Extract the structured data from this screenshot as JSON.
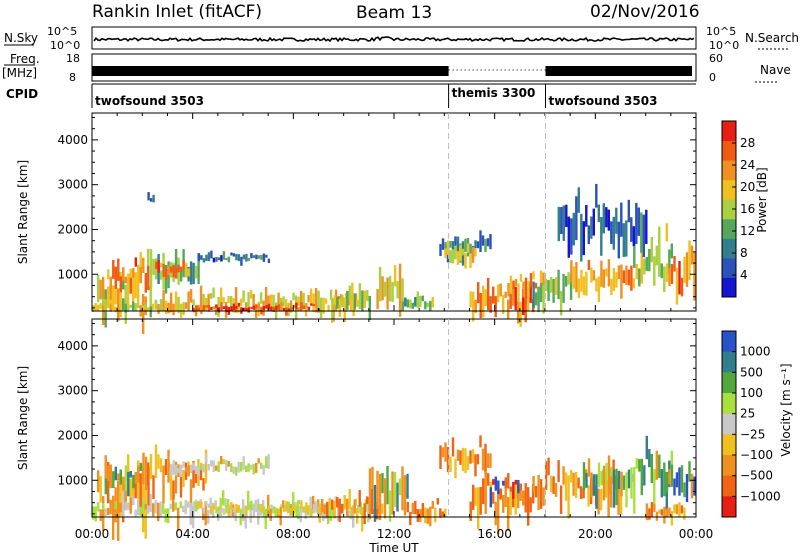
{
  "header": {
    "station": "Rankin Inlet (fitACF)",
    "beam": "Beam 13",
    "date": "02/Nov/2016"
  },
  "status_panel": {
    "nsky_label": "N.Sky",
    "nsky_ticks": [
      "10^5",
      "10^0"
    ],
    "nsearch_label": "N.Search",
    "nsearch_ticks": [
      "10^5",
      "10^0"
    ],
    "freq_label": "Freq.",
    "freq_unit": "[MHz]",
    "freq_ticks": [
      "18",
      "8"
    ],
    "nave_label": "Nave",
    "nave_ticks": [
      "60",
      "0"
    ],
    "cpid_label": "CPID",
    "cpid_segments": [
      {
        "name": "twofsound 3503",
        "start_hour": 0,
        "end_hour": 14.17
      },
      {
        "name": "themis 3300",
        "start_hour": 14.17,
        "end_hour": 18.02
      },
      {
        "name": "twofsound 3503",
        "start_hour": 18.02,
        "end_hour": 24
      }
    ]
  },
  "colors": {
    "power_scale": [
      "#1414d2",
      "#2a52b8",
      "#327e8c",
      "#55a85a",
      "#a8d040",
      "#f0c020",
      "#f09020",
      "#f05a14",
      "#e61e14"
    ],
    "velocity_scale": [
      "#2a52c8",
      "#327e8c",
      "#50a83c",
      "#a8e040",
      "#c8c8c8",
      "#f0c020",
      "#f09020",
      "#f06414",
      "#e61e14"
    ]
  },
  "chart_data": [
    {
      "type": "heatmap",
      "panel": "power",
      "xlabel": "",
      "ylabel": "Slant Range [km]",
      "x_ticks": [
        "00:00",
        "04:00",
        "08:00",
        "12:00",
        "16:00",
        "20:00",
        "00:00"
      ],
      "xlim_hours": [
        0,
        24
      ],
      "y_ticks": [
        1000,
        2000,
        3000,
        4000
      ],
      "ylim": [
        180,
        4600
      ],
      "colorbar_label": "Power [dB]",
      "colorbar_ticks": [
        4,
        8,
        12,
        16,
        20,
        24,
        28
      ],
      "colorbar_range": [
        0,
        32
      ],
      "regions": [
        {
          "t0": 0.2,
          "t1": 2.3,
          "r0": 200,
          "r1": 1700,
          "value": 18
        },
        {
          "t0": 0.6,
          "t1": 2.2,
          "r0": 800,
          "r1": 1500,
          "value": 24
        },
        {
          "t0": 2.3,
          "t1": 4.2,
          "r0": 800,
          "r1": 1800,
          "value": 14
        },
        {
          "t0": 2.5,
          "t1": 3.8,
          "r0": 950,
          "r1": 1400,
          "value": 24
        },
        {
          "t0": 4.2,
          "t1": 7.0,
          "r0": 1300,
          "r1": 1550,
          "value": 8
        },
        {
          "t0": 0.0,
          "t1": 2.5,
          "r0": 200,
          "r1": 500,
          "value": 18
        },
        {
          "t0": 2.5,
          "t1": 10.5,
          "r0": 200,
          "r1": 800,
          "value": 20
        },
        {
          "t0": 4.0,
          "t1": 9.0,
          "r0": 200,
          "r1": 400,
          "value": 28
        },
        {
          "t0": 9.5,
          "t1": 11.0,
          "r0": 250,
          "r1": 900,
          "value": 16
        },
        {
          "t0": 11.3,
          "t1": 12.3,
          "r0": 400,
          "r1": 1800,
          "value": 20
        },
        {
          "t0": 12.3,
          "t1": 13.5,
          "r0": 250,
          "r1": 650,
          "value": 14
        },
        {
          "t0": 13.8,
          "t1": 15.8,
          "r0": 1500,
          "r1": 2100,
          "value": 8
        },
        {
          "t0": 14.0,
          "t1": 15.2,
          "r0": 1300,
          "r1": 1800,
          "value": 18
        },
        {
          "t0": 15.0,
          "t1": 17.5,
          "r0": 200,
          "r1": 1000,
          "value": 24
        },
        {
          "t0": 16.5,
          "t1": 18.0,
          "r0": 600,
          "r1": 1200,
          "value": 22
        },
        {
          "t0": 17.5,
          "t1": 19.0,
          "r0": 400,
          "r1": 1300,
          "value": 14
        },
        {
          "t0": 19.0,
          "t1": 21.5,
          "r0": 700,
          "r1": 1500,
          "value": 22
        },
        {
          "t0": 21.5,
          "t1": 23.0,
          "r0": 900,
          "r1": 2200,
          "value": 16
        },
        {
          "t0": 22.8,
          "t1": 23.9,
          "r0": 700,
          "r1": 1900,
          "value": 24
        },
        {
          "t0": 18.5,
          "t1": 22.0,
          "r0": 1800,
          "r1": 3200,
          "value": 6
        },
        {
          "t0": 2.2,
          "t1": 2.4,
          "r0": 2600,
          "r1": 2900,
          "value": 8
        }
      ]
    },
    {
      "type": "heatmap",
      "panel": "velocity",
      "xlabel": "Time UT",
      "ylabel": "Slant Range [km]",
      "x_ticks": [
        "00:00",
        "04:00",
        "08:00",
        "12:00",
        "16:00",
        "20:00",
        "00:00"
      ],
      "xlim_hours": [
        0,
        24
      ],
      "y_ticks": [
        1000,
        2000,
        3000,
        4000
      ],
      "ylim": [
        180,
        4600
      ],
      "colorbar_label": "Velocity [m s⁻¹]",
      "colorbar_ticks": [
        "1000",
        "500",
        "100",
        "25",
        "−25",
        "−100",
        "−500",
        "−1000"
      ],
      "regions": [
        {
          "t0": 0.2,
          "t1": 2.2,
          "r0": 300,
          "r1": 1800,
          "value": "orange"
        },
        {
          "t0": 0.5,
          "t1": 2.0,
          "r0": 900,
          "r1": 1500,
          "value": "green"
        },
        {
          "t0": 2.0,
          "t1": 4.5,
          "r0": 800,
          "r1": 1900,
          "value": "orange"
        },
        {
          "t0": 3.0,
          "t1": 7.0,
          "r0": 1200,
          "r1": 1600,
          "value": "grey"
        },
        {
          "t0": 0.0,
          "t1": 11.0,
          "r0": 200,
          "r1": 800,
          "value": "grey"
        },
        {
          "t0": 4.0,
          "t1": 9.0,
          "r0": 300,
          "r1": 600,
          "value": "lightgreen"
        },
        {
          "t0": 9.0,
          "t1": 11.5,
          "r0": 200,
          "r1": 900,
          "value": "orange"
        },
        {
          "t0": 11.0,
          "t1": 12.5,
          "r0": 400,
          "r1": 1800,
          "value": "green"
        },
        {
          "t0": 12.5,
          "t1": 14.0,
          "r0": 200,
          "r1": 700,
          "value": "orange"
        },
        {
          "t0": 13.8,
          "t1": 15.8,
          "r0": 1300,
          "r1": 2100,
          "value": "orange"
        },
        {
          "t0": 15.0,
          "t1": 17.5,
          "r0": 300,
          "r1": 1300,
          "value": "orange"
        },
        {
          "t0": 15.8,
          "t1": 17.0,
          "r0": 700,
          "r1": 1200,
          "value": "red"
        },
        {
          "t0": 17.5,
          "t1": 21.0,
          "r0": 600,
          "r1": 1600,
          "value": "orange"
        },
        {
          "t0": 19.5,
          "t1": 21.5,
          "r0": 800,
          "r1": 1700,
          "value": "green"
        },
        {
          "t0": 21.5,
          "t1": 23.0,
          "r0": 900,
          "r1": 2100,
          "value": "green"
        },
        {
          "t0": 22.8,
          "t1": 23.9,
          "r0": 700,
          "r1": 1900,
          "value": "blue"
        },
        {
          "t0": 22.0,
          "t1": 23.5,
          "r0": 200,
          "r1": 600,
          "value": "orange"
        }
      ]
    }
  ]
}
